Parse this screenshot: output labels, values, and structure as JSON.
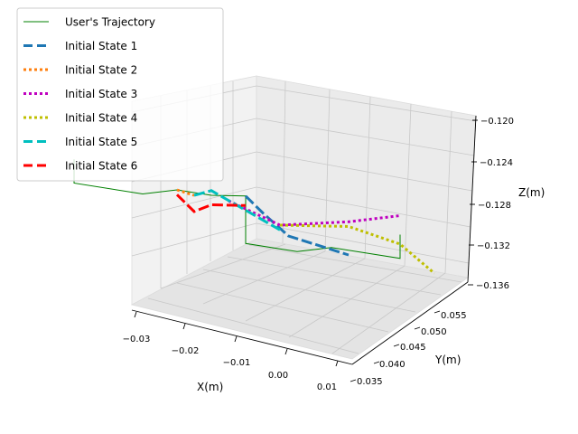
{
  "chart_data": {
    "type": "line",
    "projection": "3d",
    "xlabel": "X(m)",
    "ylabel": "Y(m)",
    "zlabel": "Z(m)",
    "xlim": [
      -0.035,
      0.012
    ],
    "ylim": [
      0.0335,
      0.0585
    ],
    "zlim": [
      -0.1362,
      -0.1188
    ],
    "x_ticks": [
      "−0.03",
      "−0.02",
      "−0.01",
      "0.00",
      "0.01"
    ],
    "y_ticks": [
      "0.035",
      "0.040",
      "0.045",
      "0.050",
      "0.055"
    ],
    "z_ticks": [
      "−0.120",
      "−0.124",
      "−0.128",
      "−0.132",
      "−0.136"
    ],
    "legend_position": "upper-left",
    "grid": true,
    "series": [
      {
        "name": "User's Trajectory",
        "color": "#008000",
        "style": "solid",
        "points": [
          [
            -0.028,
            0.0525,
            -0.1265
          ],
          [
            -0.028,
            0.0525,
            -0.129
          ],
          [
            -0.02,
            0.0525,
            -0.129
          ],
          [
            -0.016,
            0.0525,
            -0.128
          ],
          [
            -0.012,
            0.0525,
            -0.128
          ],
          [
            -0.008,
            0.0525,
            -0.1275
          ],
          [
            -0.008,
            0.0525,
            -0.1325
          ],
          [
            -0.002,
            0.0525,
            -0.1325
          ],
          [
            0.002,
            0.0525,
            -0.1315
          ],
          [
            0.01,
            0.0525,
            -0.1315
          ],
          [
            0.01,
            0.0525,
            -0.129
          ]
        ]
      },
      {
        "name": "Initial State 1",
        "color": "#1f77b4",
        "style": "dashed",
        "points": [
          [
            -0.008,
            0.0525,
            -0.1275
          ],
          [
            -0.006,
            0.0525,
            -0.129
          ],
          [
            -0.003,
            0.0525,
            -0.131
          ],
          [
            0.004,
            0.0525,
            -0.132
          ]
        ]
      },
      {
        "name": "Initial State 2",
        "color": "#ff7f0e",
        "style": "dotted",
        "points": [
          [
            -0.016,
            0.0525,
            -0.128
          ],
          [
            -0.014,
            0.0525,
            -0.1283
          ]
        ]
      },
      {
        "name": "Initial State 3",
        "color": "#bf00bf",
        "style": "dotted",
        "points": [
          [
            -0.01,
            0.0525,
            -0.1283
          ],
          [
            -0.004,
            0.0525,
            -0.13
          ],
          [
            0.004,
            0.0525,
            -0.1285
          ],
          [
            0.01,
            0.0525,
            -0.127
          ]
        ]
      },
      {
        "name": "Initial State 4",
        "color": "#bfbf00",
        "style": "dotted",
        "points": [
          [
            -0.004,
            0.0525,
            -0.13
          ],
          [
            0.004,
            0.0525,
            -0.129
          ],
          [
            0.01,
            0.0525,
            -0.13
          ],
          [
            0.014,
            0.0525,
            -0.1325
          ]
        ]
      },
      {
        "name": "Initial State 5",
        "color": "#00bfbf",
        "style": "dashed",
        "points": [
          [
            -0.014,
            0.0525,
            -0.1283
          ],
          [
            -0.012,
            0.0525,
            -0.1275
          ],
          [
            -0.008,
            0.0525,
            -0.129
          ],
          [
            -0.004,
            0.0525,
            -0.1305
          ]
        ]
      },
      {
        "name": "Initial State 6",
        "color": "#ff0000",
        "style": "dashed",
        "points": [
          [
            -0.016,
            0.0525,
            -0.1285
          ],
          [
            -0.014,
            0.0525,
            -0.13
          ],
          [
            -0.012,
            0.0525,
            -0.129
          ],
          [
            -0.008,
            0.0525,
            -0.1285
          ]
        ]
      }
    ]
  }
}
